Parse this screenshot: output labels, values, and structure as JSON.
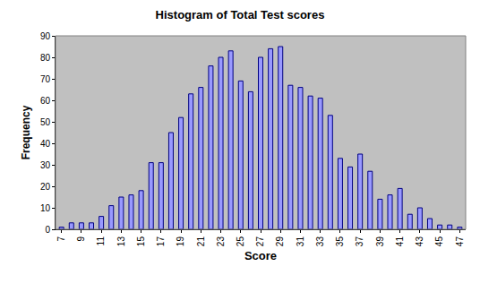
{
  "chart_data": {
    "type": "bar",
    "title": "Histogram of Total Test scores",
    "x_label": "Score",
    "y_label": "Frequency",
    "categories": [
      "7",
      null,
      "9",
      null,
      "11",
      null,
      "13",
      null,
      "15",
      null,
      "17",
      null,
      "19",
      null,
      "21",
      null,
      "23",
      null,
      "25",
      null,
      "27",
      null,
      "29",
      null,
      "31",
      null,
      "33",
      null,
      "35",
      null,
      "37",
      null,
      "39",
      null,
      "41",
      null,
      "43",
      null,
      "45",
      null,
      "47"
    ],
    "values": [
      1,
      3,
      3,
      3,
      6,
      11,
      15,
      16,
      18,
      31,
      31,
      45,
      52,
      63,
      66,
      76,
      80,
      83,
      69,
      64,
      80,
      84,
      85,
      67,
      66,
      62,
      61,
      53,
      33,
      29,
      35,
      27,
      14,
      16,
      19,
      7,
      10,
      5,
      2,
      2,
      1
    ],
    "color": "#9999ff",
    "ylim": [
      0,
      90
    ],
    "yticks": [
      0,
      10,
      20,
      30,
      40,
      50,
      60,
      70,
      80,
      90
    ],
    "grid": false
  }
}
